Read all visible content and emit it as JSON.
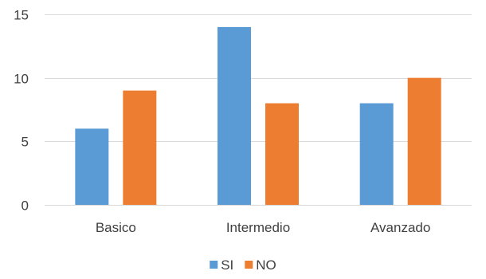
{
  "chart_data": {
    "type": "bar",
    "categories": [
      "Basico",
      "Intermedio",
      "Avanzado"
    ],
    "series": [
      {
        "name": "SI",
        "values": [
          6,
          14,
          8
        ],
        "color": "#5B9BD5"
      },
      {
        "name": "NO",
        "values": [
          9,
          8,
          10
        ],
        "color": "#ED7D31"
      }
    ],
    "ylim": [
      0,
      15
    ],
    "yticks": [
      0,
      5,
      10,
      15
    ],
    "grid": true,
    "gridline_color": "#D9D9D9",
    "legend_position": "bottom"
  }
}
